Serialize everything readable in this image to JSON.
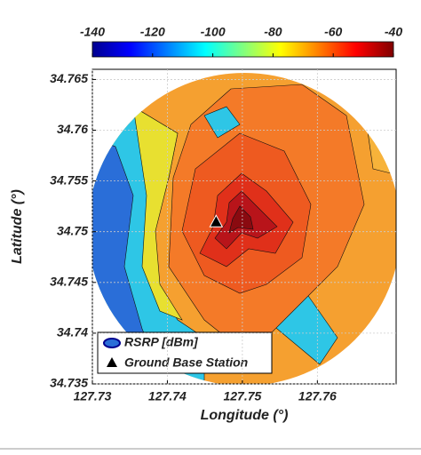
{
  "chart_data": {
    "type": "contour",
    "xlabel": "Longitude (°)",
    "ylabel": "Latitude (°)",
    "xlim": [
      127.73,
      127.7705
    ],
    "xticks": [
      127.73,
      127.74,
      127.75,
      127.76
    ],
    "ylim": [
      34.735,
      34.766
    ],
    "yticks": [
      34.735,
      34.74,
      34.745,
      34.75,
      34.755,
      34.76,
      34.765
    ],
    "colorbar": {
      "lim": [
        -140,
        -40
      ],
      "ticks": [
        -140,
        -120,
        -100,
        -80,
        -60,
        -40
      ]
    },
    "station": {
      "x": 127.7465,
      "y": 34.751
    },
    "legend": [
      "RSRP [dBm]",
      "Ground Base Station"
    ],
    "grid": true
  }
}
